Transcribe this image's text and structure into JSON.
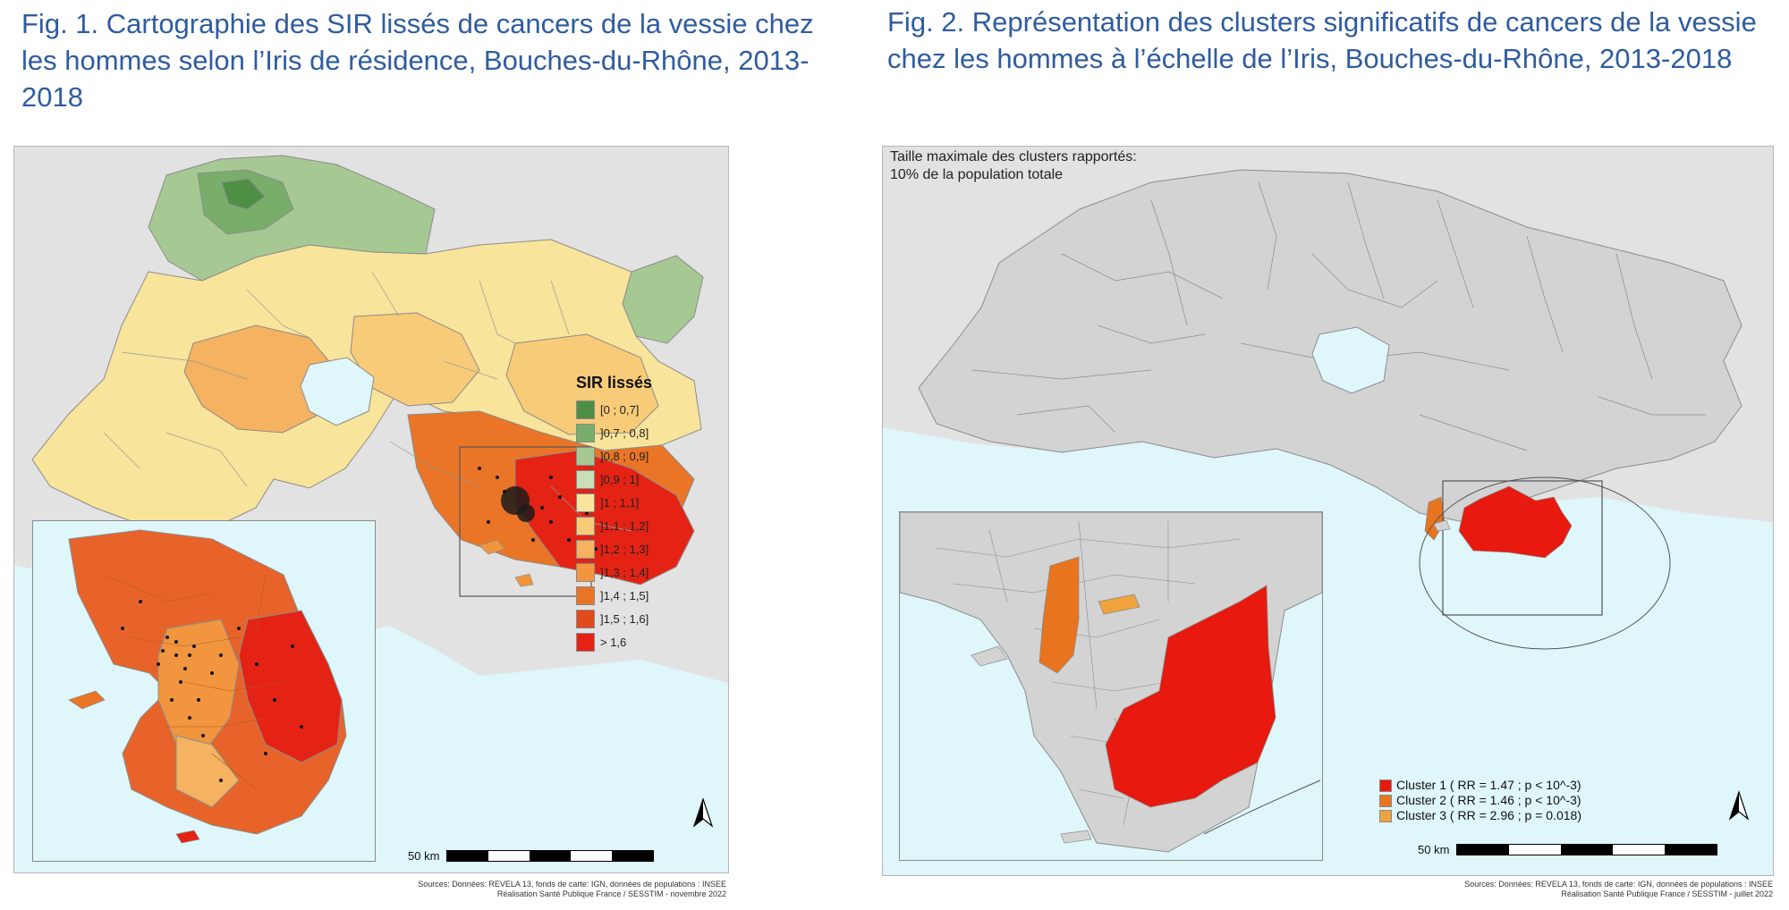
{
  "figures": {
    "fig1": {
      "title": "Fig. 1. Cartographie des SIR lissés de cancers de la vessie chez les hommes selon l’Iris de résidence, Bouches-du-Rhône, 2013-2018",
      "legend_title": "SIR lissés",
      "legend": [
        {
          "label": "[0 ; 0,7]",
          "color": "#4f8f45"
        },
        {
          "label": "]0,7 ; 0,8]",
          "color": "#79ad6a"
        },
        {
          "label": "]0,8 ; 0,9]",
          "color": "#a6c994"
        },
        {
          "label": "]0,9 ; 1]",
          "color": "#c8dfb7"
        },
        {
          "label": "]1 ; 1,1]",
          "color": "#f8e49a"
        },
        {
          "label": "]1,1 ; 1,2]",
          "color": "#f8cb78"
        },
        {
          "label": "]1,2 ; 1,3]",
          "color": "#f5b260"
        },
        {
          "label": "]1,3 ; 1,4]",
          "color": "#f1963f"
        },
        {
          "label": "]1,4 ; 1,5]",
          "color": "#ea7526"
        },
        {
          "label": "]1,5 ; 1,6]",
          "color": "#e04a1c"
        },
        {
          "label": "> 1,6",
          "color": "#e42315"
        }
      ],
      "scale_label": "50 km",
      "sources": [
        "Sources: Données: REVELA 13, fonds de carte: IGN, données de populations : INSEE",
        "Réalisation Santé Publique France / SESSTIM - novembre 2022"
      ]
    },
    "fig2": {
      "title": "Fig. 2. Représentation des clusters significatifs de cancers de la vessie chez les hommes à l’échelle de l’Iris, Bouches-du-Rhône, 2013-2018",
      "note_lines": [
        "Taille maximale des clusters rapportés:",
        "10% de la population totale"
      ],
      "clusters": [
        {
          "label": "Cluster 1 ( RR = 1.47 ; p < 10^-3)",
          "color": "#e8190f"
        },
        {
          "label": "Cluster 2 ( RR = 1.46 ; p < 10^-3)",
          "color": "#e8741f"
        },
        {
          "label": "Cluster 3 ( RR = 2.96 ; p = 0.018)",
          "color": "#f0a23c"
        }
      ],
      "scale_label": "50 km",
      "sources": [
        "Sources: Données: REVELA 13, fonds de carte: IGN, données de populations : INSEE",
        "Réalisation Santé Publique France / SESSTIM - juillet 2022"
      ]
    }
  },
  "colors": {
    "title": "#2f5c9f",
    "sea": "#dff6fa",
    "land_outside": "#e2e2e2",
    "iris_grey": "#d3d3d3",
    "boundary": "#8c8c8c"
  },
  "icons": {
    "north_arrow": "north-arrow-icon"
  }
}
